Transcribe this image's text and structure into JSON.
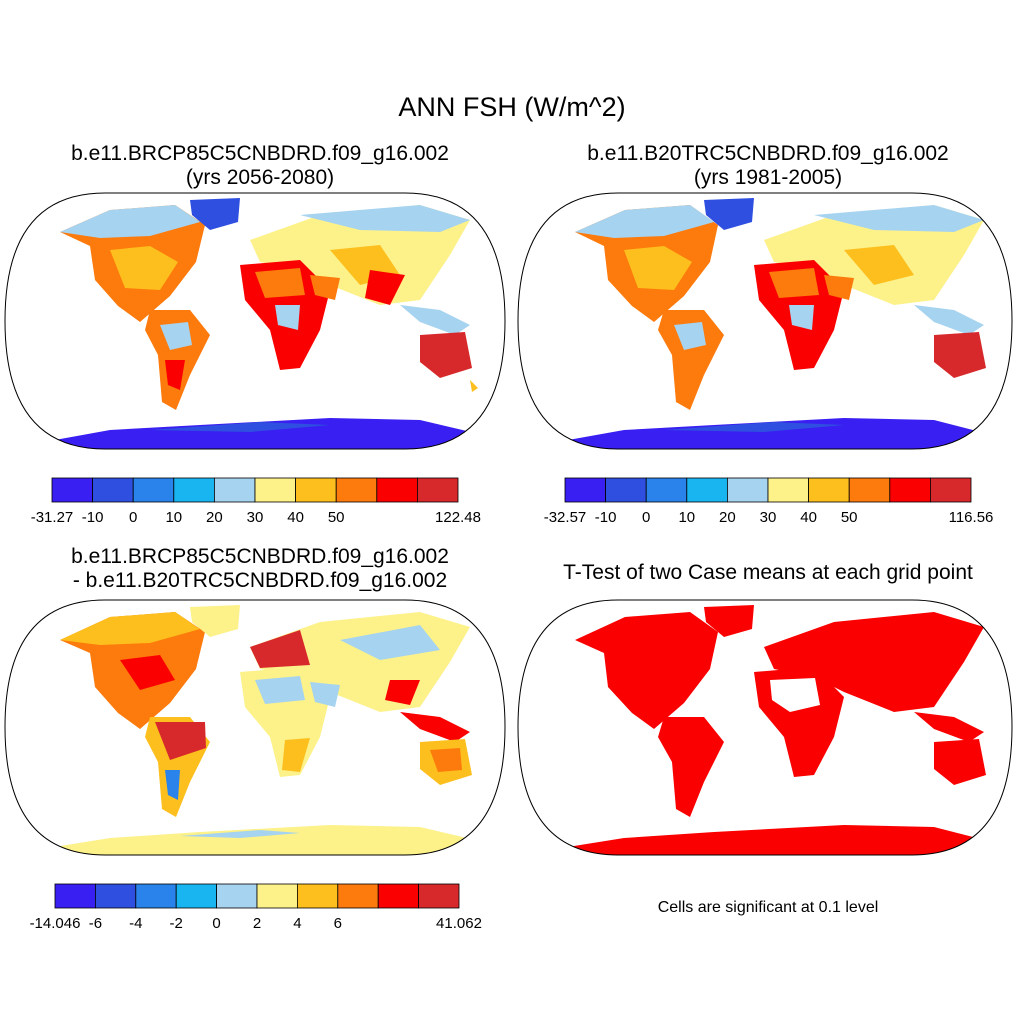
{
  "figure": {
    "title": "ANN FSH (W/m^2)",
    "note": "Cells are significant at 0.1 level"
  },
  "panels": [
    {
      "id": "p1",
      "title_line1": "b.e11.BRCP85C5CNBDRD.f09_g16.002",
      "title_line2": "(yrs 2056-2080)",
      "colorbar": {
        "colors": [
          "#3a1ff2",
          "#2f4fe0",
          "#2a83ea",
          "#19b5f0",
          "#a6d3ef",
          "#fdf18a",
          "#fdbf1d",
          "#fd7a0c",
          "#fb0000",
          "#d7292b"
        ],
        "labels": [
          "-31.27",
          "-10",
          "0",
          "10",
          "20",
          "30",
          "40",
          "50",
          "",
          "122.48"
        ]
      }
    },
    {
      "id": "p2",
      "title_line1": "b.e11.B20TRC5CNBDRD.f09_g16.002",
      "title_line2": "(yrs 1981-2005)",
      "colorbar": {
        "colors": [
          "#3a1ff2",
          "#2f4fe0",
          "#2a83ea",
          "#19b5f0",
          "#a6d3ef",
          "#fdf18a",
          "#fdbf1d",
          "#fd7a0c",
          "#fb0000",
          "#d7292b"
        ],
        "labels": [
          "-32.57",
          "-10",
          "0",
          "10",
          "20",
          "30",
          "40",
          "50",
          "",
          "116.56"
        ]
      }
    },
    {
      "id": "p3",
      "title_line1": "b.e11.BRCP85C5CNBDRD.f09_g16.002",
      "title_line2": "- b.e11.B20TRC5CNBDRD.f09_g16.002",
      "colorbar": {
        "colors": [
          "#3a1ff2",
          "#2f4fe0",
          "#2a83ea",
          "#19b5f0",
          "#a6d3ef",
          "#fdf18a",
          "#fdbf1d",
          "#fd7a0c",
          "#fb0000",
          "#d7292b"
        ],
        "labels": [
          "-14.046",
          "-6",
          "-4",
          "-2",
          "0",
          "2",
          "4",
          "6",
          "",
          "41.062"
        ]
      }
    },
    {
      "id": "p4",
      "title_line1": "T-Test of two Case means at each grid point"
    }
  ],
  "colors": {
    "ocean": "#ffffff",
    "border": "#000000",
    "significant": "#fb0000"
  }
}
